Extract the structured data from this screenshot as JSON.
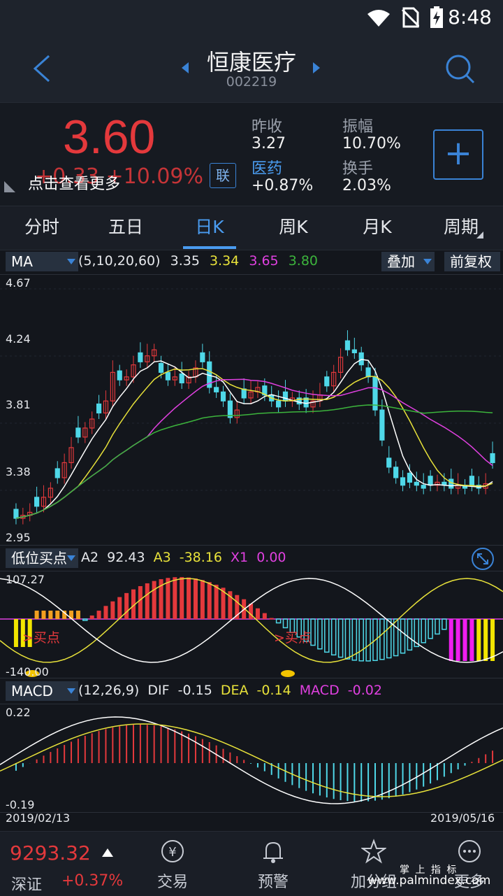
{
  "status": {
    "time": "8:48"
  },
  "header": {
    "title": "恒康医疗",
    "code": "002219"
  },
  "quote": {
    "price": "3.60",
    "change": "+0.33  +10.09%",
    "tip": "点击查看更多",
    "lian": "联",
    "prev_close_label": "昨收",
    "prev_close": "3.27",
    "sector_label": "医药",
    "sector_change": "+0.87%",
    "amplitude_label": "振幅",
    "amplitude": "10.70%",
    "turnover_label": "换手",
    "turnover": "2.03%"
  },
  "tabs": [
    "分时",
    "五日",
    "日K",
    "周K",
    "月K",
    "周期"
  ],
  "active_tab": 2,
  "ma_bar": {
    "selector": "MA",
    "params": "(5,10,20,60)",
    "v1": "3.35",
    "v2": "3.34",
    "v3": "3.65",
    "v4": "3.80",
    "overlay": "叠加",
    "adjust": "前复权"
  },
  "price_axis": [
    "4.67",
    "4.24",
    "3.81",
    "3.38",
    "2.95"
  ],
  "ind_bar": {
    "selector": "低位买点",
    "a2_label": "A2",
    "a2": "92.43",
    "a3_label": "A3",
    "a3": "-38.16",
    "x1_label": "X1",
    "x1": "0.00"
  },
  "ind_axis": {
    "top": "107.27",
    "bottom": "-140.00"
  },
  "buy_label": ">买点",
  "macd_bar": {
    "selector": "MACD",
    "params": "(12,26,9)",
    "dif_label": "DIF",
    "dif": "-0.15",
    "dea_label": "DEA",
    "dea": "-0.14",
    "macd_label": "MACD",
    "macd": "-0.02"
  },
  "macd_axis": {
    "top": "0.22",
    "bottom": "-0.19"
  },
  "dates": {
    "start": "2019/02/13",
    "end": "2019/05/16"
  },
  "bottom": {
    "index_value": "9293.32",
    "index_name": "深证",
    "index_change": "+0.37%",
    "nav": [
      "交易",
      "预警",
      "加分组",
      "更多"
    ]
  },
  "watermark": {
    "line1": "掌 上 指 标",
    "line2": "www.palmindex.com"
  },
  "colors": {
    "up": "#e4393c",
    "down": "#4fd8e8",
    "accent": "#4a9cf0",
    "ma5": "#ffffff",
    "ma10": "#e8e23a",
    "ma20": "#e040e0",
    "ma60": "#3cb43c"
  },
  "chart_data": {
    "type": "candlestick",
    "ylim": [
      2.95,
      4.67
    ],
    "count": 70
  }
}
